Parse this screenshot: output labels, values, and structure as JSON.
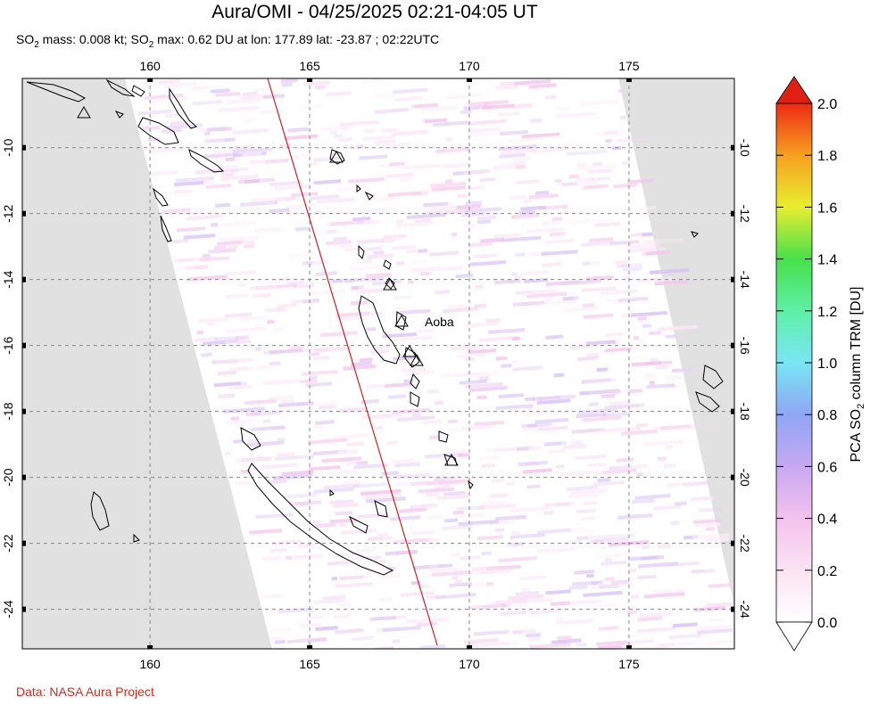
{
  "title": "Aura/OMI - 04/25/2025 02:21-04:05 UT",
  "subtitle": {
    "pre1": "SO",
    "sub1": "2",
    "mid": " mass: 0.008 kt; SO",
    "sub2": "2",
    "post": " max: 0.62 DU at lon: 177.89 lat: -23.87 ; 02:22UTC"
  },
  "credit": "Data: NASA Aura Project",
  "map": {
    "lon_range": [
      156,
      178.3
    ],
    "lat_range": [
      -25.2,
      -7.9
    ],
    "lon_ticks": [
      "160",
      "165",
      "170",
      "175"
    ],
    "lat_ticks": [
      "-10",
      "-12",
      "-14",
      "-16",
      "-18",
      "-20",
      "-22",
      "-24"
    ],
    "volcano_label": "Aoba",
    "colors": {
      "no_data": "#e1e1e1",
      "grid": "#888888",
      "track": "#cc2222",
      "coast": "#000000"
    }
  },
  "colorbar": {
    "label_pre": "PCA SO",
    "label_sub": "2",
    "label_post": " column TRM [DU]",
    "ticks": [
      "0.0",
      "0.2",
      "0.4",
      "0.6",
      "0.8",
      "1.0",
      "1.2",
      "1.4",
      "1.6",
      "1.8",
      "2.0"
    ]
  }
}
